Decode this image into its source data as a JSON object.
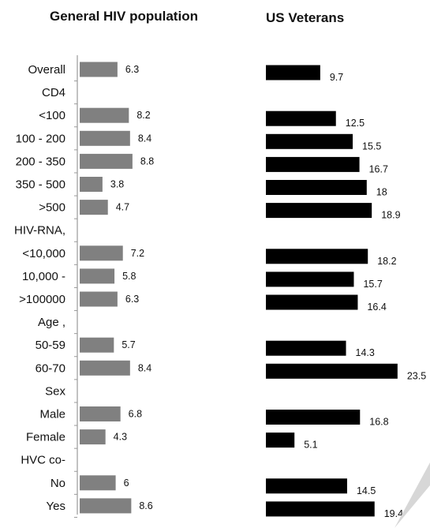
{
  "chart_data": {
    "type": "bar",
    "orientation": "horizontal",
    "categories": [
      "Overall",
      "CD4",
      "<100",
      "100 - 200",
      "200 - 350",
      "350 - 500",
      ">500",
      "HIV-RNA,",
      "<10,000",
      "10,000 -",
      ">100000",
      "Age ,",
      "50-59",
      "60-70",
      "Sex",
      "Male",
      "Female",
      "HVC co-",
      "No",
      "Yes"
    ],
    "series": [
      {
        "name": "General HIV population",
        "color": "#808080",
        "values": [
          6.3,
          null,
          8.2,
          8.4,
          8.8,
          3.8,
          4.7,
          null,
          7.2,
          5.8,
          6.3,
          null,
          5.7,
          8.4,
          null,
          6.8,
          4.3,
          null,
          6,
          8.6
        ],
        "labels": [
          "6.3",
          "",
          "8.2",
          "8.4",
          "8.8",
          "3.8",
          "4.7",
          "",
          "7.2",
          "5.8",
          "6.3",
          "",
          "5.7",
          "8.4",
          "",
          "6.8",
          "4.3",
          "",
          "6",
          "8.6"
        ]
      },
      {
        "name": "US Veterans",
        "color": "#000000",
        "values": [
          9.7,
          null,
          12.5,
          15.5,
          16.7,
          18,
          18.9,
          null,
          18.2,
          15.7,
          16.4,
          null,
          14.3,
          23.5,
          null,
          16.8,
          5.1,
          null,
          14.5,
          19.4
        ],
        "labels": [
          "9.7",
          "",
          "12.5",
          "15.5",
          "16.7",
          "18",
          "18.9",
          "",
          "18.2",
          "15.7",
          "16.4",
          "",
          "14.3",
          "23.5",
          "",
          "16.8",
          "5.1",
          "",
          "14.5",
          "19.4"
        ]
      }
    ],
    "legend": "none",
    "grid": false,
    "x_range": [
      0,
      25
    ]
  }
}
